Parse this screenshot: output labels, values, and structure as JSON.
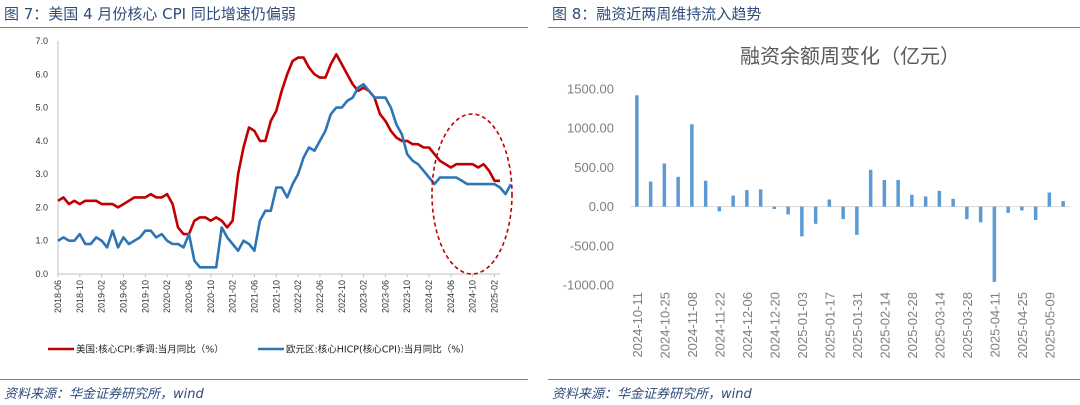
{
  "left_panel": {
    "figure_title": "图 7：美国 4 月份核心 CPI 同比增速仍偏弱",
    "source": "资料来源：华金证券研究所，wind"
  },
  "right_panel": {
    "figure_title": "图 8：融资近两周维持流入趋势",
    "source": "资料来源：华金证券研究所，wind"
  },
  "chart_data": [
    {
      "type": "line",
      "title": "",
      "ylim": [
        0,
        7
      ],
      "yticks": [
        "0.0",
        "1.0",
        "2.0",
        "3.0",
        "4.0",
        "5.0",
        "6.0",
        "7.0"
      ],
      "x_tick_labels": [
        "2018-06",
        "2018-10",
        "2019-02",
        "2019-06",
        "2019-10",
        "2020-02",
        "2020-06",
        "2020-10",
        "2021-02",
        "2021-06",
        "2021-10",
        "2022-02",
        "2022-06",
        "2022-10",
        "2023-02",
        "2023-06",
        "2023-10",
        "2024-02",
        "2024-06",
        "2024-10",
        "2025-02"
      ],
      "x_start": "2018-06",
      "colors": {
        "us": "#c00000",
        "eu": "#2e75b6",
        "ellipse": "#c00000"
      },
      "series": [
        {
          "name": "美国:核心CPI:季调:当月同比（%）",
          "key": "us",
          "values": [
            2.2,
            2.3,
            2.1,
            2.2,
            2.1,
            2.2,
            2.2,
            2.2,
            2.1,
            2.1,
            2.1,
            2.0,
            2.1,
            2.2,
            2.3,
            2.3,
            2.3,
            2.4,
            2.3,
            2.3,
            2.4,
            2.1,
            1.4,
            1.2,
            1.2,
            1.6,
            1.7,
            1.7,
            1.6,
            1.7,
            1.6,
            1.4,
            1.6,
            3.0,
            3.8,
            4.4,
            4.3,
            4.0,
            4.0,
            4.6,
            4.9,
            5.5,
            6.0,
            6.4,
            6.5,
            6.5,
            6.2,
            6.0,
            5.9,
            5.9,
            6.3,
            6.6,
            6.3,
            6.0,
            5.7,
            5.5,
            5.6,
            5.5,
            5.3,
            4.8,
            4.6,
            4.3,
            4.1,
            4.0,
            4.0,
            3.9,
            3.9,
            3.8,
            3.8,
            3.6,
            3.4,
            3.3,
            3.2,
            3.3,
            3.3,
            3.3,
            3.3,
            3.2,
            3.3,
            3.1,
            2.8,
            2.8
          ]
        },
        {
          "name": "欧元区:核心HICP(核心CPI):当月同比（%）",
          "key": "eu",
          "values": [
            1.0,
            1.1,
            1.0,
            1.0,
            1.2,
            0.9,
            0.9,
            1.1,
            1.0,
            0.8,
            1.3,
            0.8,
            1.1,
            0.9,
            1.0,
            1.1,
            1.3,
            1.3,
            1.1,
            1.2,
            1.0,
            0.9,
            0.9,
            0.8,
            1.2,
            0.4,
            0.2,
            0.2,
            0.2,
            0.2,
            1.4,
            1.1,
            0.9,
            0.7,
            1.0,
            0.9,
            0.7,
            1.6,
            1.9,
            1.9,
            2.6,
            2.6,
            2.3,
            2.7,
            3.0,
            3.5,
            3.8,
            3.7,
            4.0,
            4.3,
            4.8,
            5.0,
            5.0,
            5.2,
            5.3,
            5.6,
            5.7,
            5.5,
            5.3,
            5.3,
            5.3,
            5.0,
            4.5,
            4.2,
            3.6,
            3.4,
            3.3,
            3.1,
            2.9,
            2.7,
            2.9,
            2.9,
            2.9,
            2.9,
            2.8,
            2.7,
            2.7,
            2.7,
            2.7,
            2.7,
            2.7,
            2.6,
            2.4,
            2.7
          ]
        }
      ]
    },
    {
      "type": "bar",
      "title": "融资余额周变化（亿元）",
      "ylim": [
        -1000,
        1500
      ],
      "yticks": [
        "-1000.00",
        "-500.00",
        "0.00",
        "500.00",
        "1000.00",
        "1500.00"
      ],
      "color": "#5b9bd5",
      "x_tick_labels": [
        "2024-10-11",
        "2024-10-25",
        "2024-11-08",
        "2024-11-22",
        "2024-12-06",
        "2024-12-20",
        "2025-01-03",
        "2025-01-17",
        "2025-01-31",
        "2025-02-14",
        "2025-02-28",
        "2025-03-14",
        "2025-03-28",
        "2025-04-11",
        "2025-04-25",
        "2025-05-09"
      ],
      "values": [
        1420,
        320,
        550,
        380,
        1050,
        330,
        -60,
        140,
        210,
        220,
        -30,
        -100,
        -380,
        -220,
        90,
        -160,
        -360,
        470,
        340,
        340,
        150,
        130,
        200,
        100,
        -160,
        -200,
        -960,
        -80,
        -50,
        -170,
        180,
        70
      ]
    }
  ]
}
